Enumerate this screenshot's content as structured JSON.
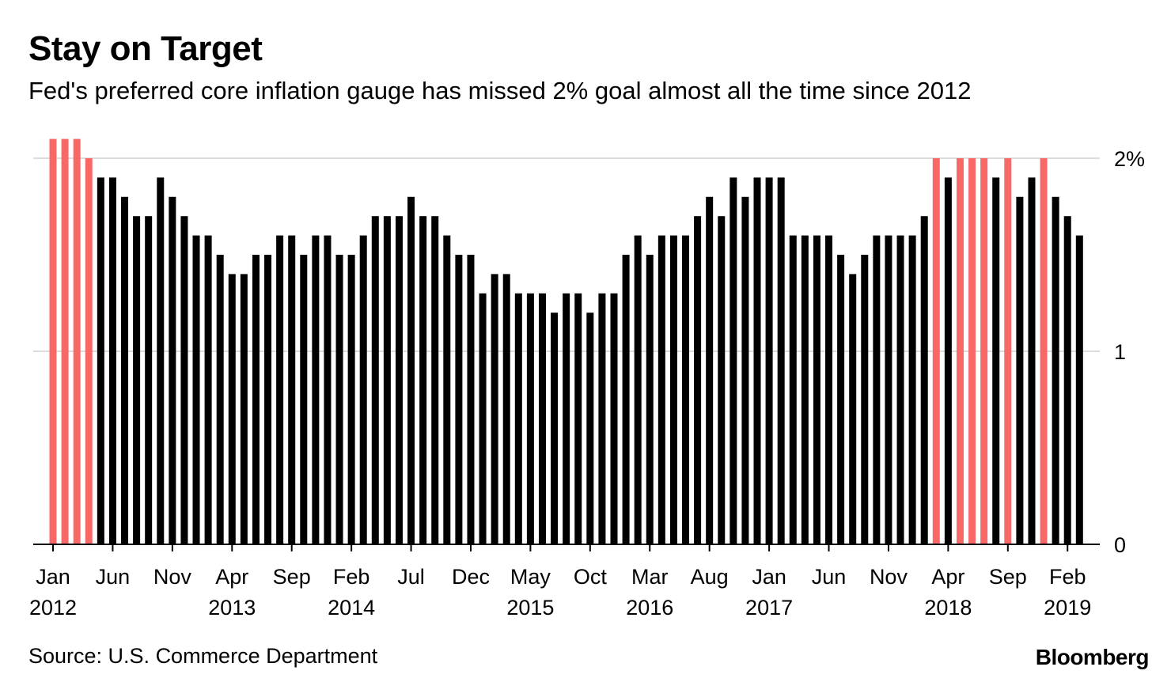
{
  "colors": {
    "below_target": "#000000",
    "at_or_above_target": "#f86867",
    "grid": "#dcdcdc",
    "axis": "#000000"
  },
  "chart_data": {
    "type": "bar",
    "title": "Stay on Target",
    "subtitle": "Fed's preferred core inflation gauge has missed 2% goal almost all the time since 2012",
    "target": 2,
    "ylim": [
      0,
      2.1
    ],
    "y_ticks": [
      {
        "value": 2,
        "label": "2%"
      },
      {
        "value": 1,
        "label": "1"
      },
      {
        "value": 0,
        "label": "0"
      }
    ],
    "x_ticks": [
      {
        "index": 0,
        "month": "Jan",
        "year": "2012"
      },
      {
        "index": 5,
        "month": "Jun",
        "year": ""
      },
      {
        "index": 10,
        "month": "Nov",
        "year": ""
      },
      {
        "index": 15,
        "month": "Apr",
        "year": "2013"
      },
      {
        "index": 20,
        "month": "Sep",
        "year": ""
      },
      {
        "index": 25,
        "month": "Feb",
        "year": "2014"
      },
      {
        "index": 30,
        "month": "Jul",
        "year": ""
      },
      {
        "index": 35,
        "month": "Dec",
        "year": ""
      },
      {
        "index": 40,
        "month": "May",
        "year": "2015"
      },
      {
        "index": 45,
        "month": "Oct",
        "year": ""
      },
      {
        "index": 50,
        "month": "Mar",
        "year": "2016"
      },
      {
        "index": 55,
        "month": "Aug",
        "year": ""
      },
      {
        "index": 60,
        "month": "Jan",
        "year": "2017"
      },
      {
        "index": 65,
        "month": "Jun",
        "year": ""
      },
      {
        "index": 70,
        "month": "Nov",
        "year": ""
      },
      {
        "index": 75,
        "month": "Apr",
        "year": "2018"
      },
      {
        "index": 80,
        "month": "Sep",
        "year": ""
      },
      {
        "index": 85,
        "month": "Feb",
        "year": "2019"
      }
    ],
    "values": [
      2.1,
      2.1,
      2.1,
      2.0,
      1.9,
      1.9,
      1.8,
      1.7,
      1.7,
      1.9,
      1.8,
      1.7,
      1.6,
      1.6,
      1.5,
      1.4,
      1.4,
      1.5,
      1.5,
      1.6,
      1.6,
      1.5,
      1.6,
      1.6,
      1.5,
      1.5,
      1.6,
      1.7,
      1.7,
      1.7,
      1.8,
      1.7,
      1.7,
      1.6,
      1.5,
      1.5,
      1.3,
      1.4,
      1.4,
      1.3,
      1.3,
      1.3,
      1.2,
      1.3,
      1.3,
      1.2,
      1.3,
      1.3,
      1.5,
      1.6,
      1.5,
      1.6,
      1.6,
      1.6,
      1.7,
      1.8,
      1.7,
      1.9,
      1.8,
      1.9,
      1.9,
      1.9,
      1.6,
      1.6,
      1.6,
      1.6,
      1.5,
      1.4,
      1.5,
      1.6,
      1.6,
      1.6,
      1.6,
      1.7,
      2.0,
      1.9,
      2.0,
      2.0,
      2.0,
      1.9,
      2.0,
      1.8,
      1.9,
      2.0,
      1.8,
      1.7,
      1.6
    ],
    "source": "Source: U.S. Commerce Department",
    "brand": "Bloomberg"
  }
}
